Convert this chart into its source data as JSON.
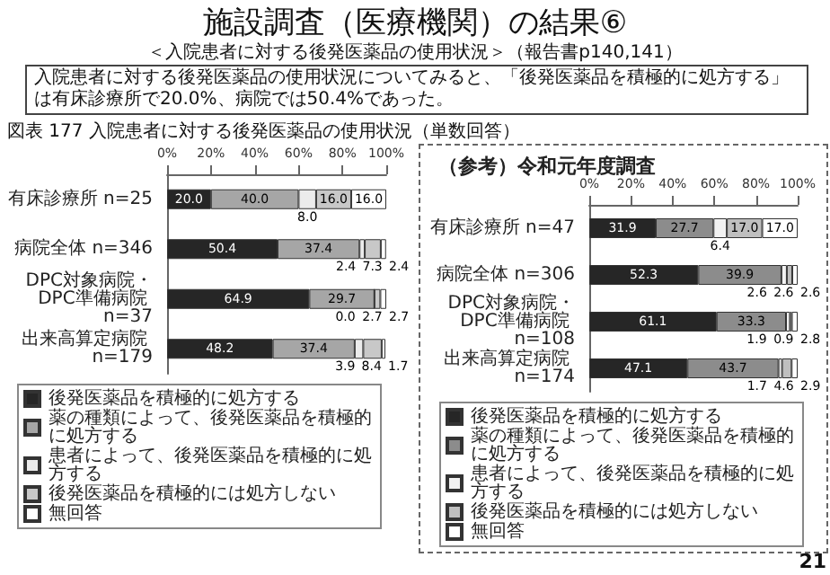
{
  "chart_data": [
    {
      "type": "bar",
      "title": "施設調査（医療機関）の結果⑥",
      "subtitle": "＜入院患者に対する後発医薬品の使用状況＞（報告書p140,141）",
      "annotations": [
        "入院患者に対する後発医薬品の使用状況についてみると、「後発医薬品を積極的に処方する」は有床診療所で20.0%、病院では50.4%であった。",
        "図表 177 入院患者に対する後発医薬品の使用状況（単数回答）",
        "21"
      ],
      "orientation": "horizontal",
      "stacked": true,
      "legend": "bottom",
      "categories": [
        "有床診療所 n=25",
        "病院全体 n=346",
        "DPC対象病院・DPC準備病院 n=37",
        "出来高算定病院 n=179"
      ],
      "xlim": [
        0,
        100
      ],
      "xticks": [
        {
          "value": 0,
          "label": "0%"
        },
        {
          "value": 20,
          "label": "20%"
        },
        {
          "value": 40,
          "label": "40%"
        },
        {
          "value": 60,
          "label": "60%"
        },
        {
          "value": 80,
          "label": "80%"
        },
        {
          "value": 100,
          "label": "100%"
        }
      ],
      "series": [
        {
          "name": "後発医薬品を積極的に処方する",
          "color": "#262626",
          "values": [
            20.0,
            50.4,
            64.9,
            48.2
          ],
          "value_labels": [
            "20.0",
            "50.4",
            "64.9",
            "48.2"
          ]
        },
        {
          "name": "薬の種類によって、後発医薬品を積極的に処方する",
          "color": "#a6a6a6",
          "values": [
            40.0,
            37.4,
            29.7,
            37.4
          ],
          "value_labels": [
            "40.0",
            "37.4",
            "29.7",
            "37.4"
          ]
        },
        {
          "name": "患者によって、後発医薬品を積極的に処方する",
          "color": "#ececec",
          "values": [
            8.0,
            2.4,
            0.0,
            3.9
          ],
          "value_labels": [
            "8.0",
            "2.4",
            "0.0",
            "3.9"
          ]
        },
        {
          "name": "後発医薬品を積極的には処方しない",
          "color": "#c8c8c8",
          "values": [
            16.0,
            7.3,
            2.7,
            8.4
          ],
          "value_labels": [
            "16.0",
            "7.3",
            "2.7",
            "8.4"
          ]
        },
        {
          "name": "無回答",
          "color": "#ffffff",
          "values": [
            16.0,
            2.4,
            2.7,
            1.7
          ],
          "value_labels": [
            "16.0",
            "2.4",
            "2.7",
            "1.7"
          ]
        }
      ]
    },
    {
      "type": "bar",
      "title": "（参考）令和元年度調査",
      "orientation": "horizontal",
      "stacked": true,
      "legend": "bottom",
      "categories": [
        "有床診療所 n=47",
        "病院全体 n=306",
        "DPC対象病院・DPC準備病院 n=108",
        "出来高算定病院 n=174"
      ],
      "xlim": [
        0,
        100
      ],
      "xticks": [
        {
          "value": 0,
          "label": "0%"
        },
        {
          "value": 20,
          "label": "20%"
        },
        {
          "value": 40,
          "label": "40%"
        },
        {
          "value": 60,
          "label": "60%"
        },
        {
          "value": 80,
          "label": "80%"
        },
        {
          "value": 100,
          "label": "100%"
        }
      ],
      "series": [
        {
          "name": "後発医薬品を積極的に処方する",
          "color": "#262626",
          "values": [
            31.9,
            52.3,
            61.1,
            47.1
          ],
          "value_labels": [
            "31.9",
            "52.3",
            "61.1",
            "47.1"
          ]
        },
        {
          "name": "薬の種類によって、後発医薬品を積極的に処方する",
          "color": "#8c8c8c",
          "values": [
            27.7,
            39.9,
            33.3,
            43.7
          ],
          "value_labels": [
            "27.7",
            "39.9",
            "33.3",
            "43.7"
          ]
        },
        {
          "name": "患者によって、後発医薬品を積極的に処方する",
          "color": "#f2f2f2",
          "values": [
            6.4,
            2.6,
            1.9,
            1.7
          ],
          "value_labels": [
            "6.4",
            "2.6",
            "1.9",
            "1.7"
          ]
        },
        {
          "name": "後発医薬品を積極的には処方しない",
          "color": "#bfbfbf",
          "values": [
            17.0,
            2.6,
            0.9,
            4.6
          ],
          "value_labels": [
            "17.0",
            "2.6",
            "0.9",
            "4.6"
          ]
        },
        {
          "name": "無回答",
          "color": "#ffffff",
          "values": [
            17.0,
            2.6,
            2.8,
            2.9
          ],
          "value_labels": [
            "17.0",
            "2.6",
            "2.8",
            "2.9"
          ]
        }
      ]
    }
  ]
}
